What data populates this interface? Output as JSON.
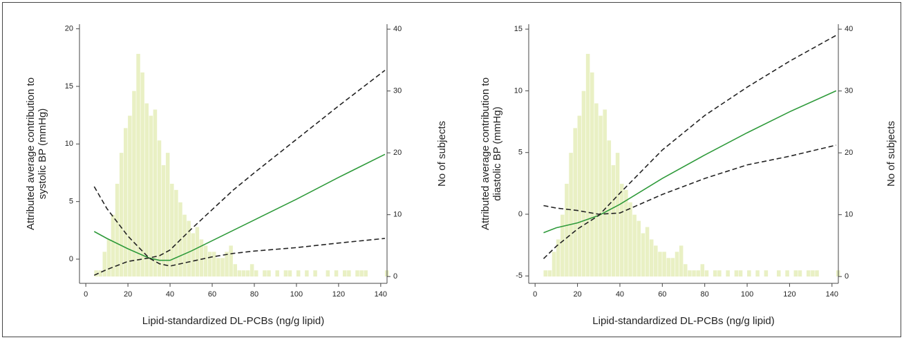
{
  "chart_data": [
    {
      "type": "line",
      "xlabel": "Lipid-standardized DL-PCBs (ng/g lipid)",
      "ylabel": [
        "Attributed average contribution to",
        "systolic BP (mmHg)"
      ],
      "y2label": "No of subjects",
      "xlim": [
        -3,
        143
      ],
      "xticks": [
        0,
        20,
        40,
        60,
        80,
        100,
        120,
        140
      ],
      "ylim": [
        -2.1,
        20.4
      ],
      "yticks": [
        0,
        5,
        10,
        15,
        20
      ],
      "y2lim": [
        -1.1,
        40.8
      ],
      "y2ticks": [
        0,
        10,
        20,
        30,
        40
      ],
      "histogram": {
        "color": "#e9f0c4",
        "axis": "y2",
        "bins": [
          4,
          6,
          8,
          10,
          12,
          14,
          16,
          18,
          20,
          22,
          24,
          26,
          28,
          30,
          32,
          34,
          36,
          38,
          40,
          42,
          44,
          46,
          48,
          50,
          52,
          54,
          56,
          58,
          60,
          62,
          64,
          66,
          68,
          70,
          72,
          74,
          76,
          78,
          80,
          82,
          84,
          86,
          88,
          90,
          92,
          94,
          96,
          98,
          100,
          102,
          104,
          106,
          108,
          110,
          112,
          114,
          116,
          118,
          120,
          122,
          124,
          126,
          128,
          130,
          132,
          134,
          136,
          138,
          140,
          142,
          144
        ],
        "counts": [
          1,
          1,
          4,
          6,
          10,
          15,
          20,
          24,
          26,
          30,
          36,
          33,
          28,
          26,
          27,
          22,
          18,
          20,
          15,
          14,
          12,
          10,
          9,
          7,
          8,
          6,
          5,
          4,
          4,
          3,
          3,
          4,
          5,
          2,
          1,
          1,
          1,
          2,
          1,
          0,
          1,
          1,
          0,
          1,
          0,
          1,
          1,
          0,
          1,
          0,
          1,
          0,
          1,
          0,
          0,
          1,
          0,
          1,
          0,
          1,
          1,
          0,
          1,
          1,
          1,
          0,
          0,
          0,
          0,
          1
        ]
      },
      "x": [
        4,
        10,
        20,
        30,
        35,
        40,
        50,
        60,
        70,
        80,
        100,
        120,
        142
      ],
      "series": [
        {
          "color": "#2e9a3a",
          "dash": false,
          "values": [
            2.4,
            1.8,
            0.9,
            0.1,
            -0.1,
            -0.1,
            0.7,
            1.6,
            2.5,
            3.4,
            5.2,
            7.1,
            9.1
          ]
        },
        {
          "color": "#222222",
          "dash": true,
          "values": [
            -1.4,
            -0.9,
            -0.2,
            0.1,
            0.3,
            0.8,
            2.6,
            4.3,
            6.0,
            7.5,
            10.4,
            13.3,
            16.4
          ]
        },
        {
          "color": "#222222",
          "dash": true,
          "values": [
            6.3,
            4.4,
            2.0,
            0.1,
            -0.4,
            -0.6,
            -0.2,
            0.2,
            0.5,
            0.7,
            1.0,
            1.4,
            1.8
          ]
        }
      ]
    },
    {
      "type": "line",
      "xlabel": "Lipid-standardized DL-PCBs (ng/g lipid)",
      "ylabel": [
        "Attributed average contribution to",
        "diastolic BP (mmHg)"
      ],
      "y2label": "No of subjects",
      "xlim": [
        -3,
        143
      ],
      "xticks": [
        0,
        20,
        40,
        60,
        80,
        100,
        120,
        140
      ],
      "ylim": [
        -5.6,
        15.4
      ],
      "yticks": [
        -5,
        0,
        5,
        10,
        15
      ],
      "y2lim": [
        -1.1,
        40.8
      ],
      "y2ticks": [
        0,
        10,
        20,
        30,
        40
      ],
      "histogram": {
        "color": "#e9f0c4",
        "axis": "y2",
        "bins": [
          4,
          6,
          8,
          10,
          12,
          14,
          16,
          18,
          20,
          22,
          24,
          26,
          28,
          30,
          32,
          34,
          36,
          38,
          40,
          42,
          44,
          46,
          48,
          50,
          52,
          54,
          56,
          58,
          60,
          62,
          64,
          66,
          68,
          70,
          72,
          74,
          76,
          78,
          80,
          82,
          84,
          86,
          88,
          90,
          92,
          94,
          96,
          98,
          100,
          102,
          104,
          106,
          108,
          110,
          112,
          114,
          116,
          118,
          120,
          122,
          124,
          126,
          128,
          130,
          132,
          134,
          136,
          138,
          140,
          142,
          144
        ],
        "counts": [
          1,
          1,
          4,
          6,
          10,
          15,
          20,
          24,
          26,
          30,
          36,
          33,
          28,
          26,
          27,
          22,
          18,
          20,
          15,
          14,
          12,
          10,
          9,
          7,
          8,
          6,
          5,
          4,
          4,
          3,
          3,
          4,
          5,
          2,
          1,
          1,
          1,
          2,
          1,
          0,
          1,
          1,
          0,
          1,
          0,
          1,
          1,
          0,
          1,
          0,
          1,
          0,
          1,
          0,
          0,
          1,
          0,
          1,
          0,
          1,
          1,
          0,
          1,
          1,
          1,
          0,
          0,
          0,
          0,
          1
        ]
      },
      "x": [
        4,
        10,
        20,
        30,
        40,
        60,
        80,
        100,
        120,
        142
      ],
      "series": [
        {
          "color": "#2e9a3a",
          "dash": false,
          "values": [
            -1.5,
            -1.1,
            -0.7,
            -0.1,
            0.8,
            2.9,
            4.8,
            6.6,
            8.3,
            10.0
          ]
        },
        {
          "color": "#222222",
          "dash": true,
          "values": [
            -3.6,
            -2.6,
            -1.2,
            -0.1,
            1.7,
            5.2,
            8.0,
            10.3,
            12.4,
            14.5
          ]
        },
        {
          "color": "#222222",
          "dash": true,
          "values": [
            0.7,
            0.5,
            0.3,
            0.0,
            0.1,
            1.6,
            2.9,
            4.0,
            4.7,
            5.6
          ]
        }
      ]
    }
  ]
}
